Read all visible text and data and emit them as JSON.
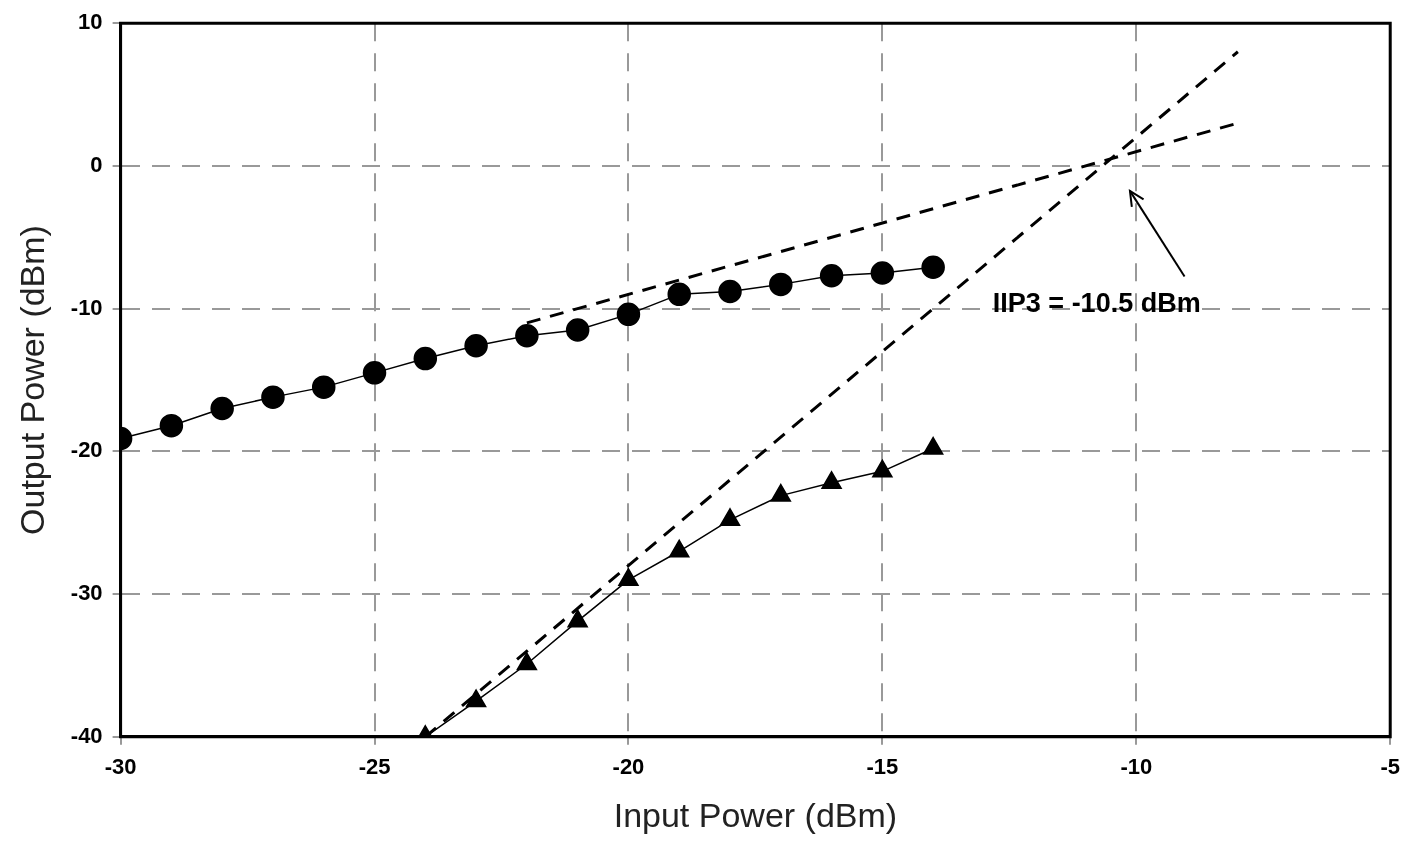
{
  "chart_data": {
    "type": "line",
    "xlabel": "Input Power (dBm)",
    "ylabel": "Output Power (dBm)",
    "xlim": [
      -30,
      -5
    ],
    "xticks": [
      -30,
      -25,
      -20,
      -15,
      -10,
      -5
    ],
    "ylim": [
      -40,
      10
    ],
    "yticks": [
      -40,
      -30,
      -20,
      -10,
      0,
      10
    ],
    "grid": true,
    "legend": false,
    "series": [
      {
        "type": "line",
        "color": "#000000",
        "marker": "circle",
        "line_style": "solid",
        "x": [
          -30,
          -29,
          -28,
          -27,
          -26,
          -25,
          -24,
          -23,
          -22,
          -21,
          -20,
          -19,
          -18,
          -17,
          -16,
          -15,
          -14
        ],
        "values": [
          -19.1,
          -18.2,
          -17.0,
          -16.2,
          -15.5,
          -14.5,
          -13.5,
          -12.6,
          -11.9,
          -11.5,
          -10.4,
          -9.0,
          -8.8,
          -8.3,
          -7.7,
          -7.5,
          -7.1
        ]
      },
      {
        "type": "line",
        "color": "#000000",
        "marker": "triangle",
        "line_style": "solid",
        "x": [
          -24,
          -23,
          -22,
          -21,
          -20,
          -19,
          -18,
          -17,
          -16,
          -15,
          -14
        ],
        "values": [
          -40,
          -37.5,
          -34.9,
          -31.9,
          -29.0,
          -27.0,
          -24.8,
          -23.1,
          -22.2,
          -21.4,
          -19.8
        ]
      },
      {
        "type": "line",
        "color": "#000000",
        "marker": "none",
        "line_style": "dashed",
        "x": [
          -22,
          -8
        ],
        "values": [
          -11,
          3
        ]
      },
      {
        "type": "line",
        "color": "#000000",
        "marker": "none",
        "line_style": "dashed",
        "x": [
          -24,
          -8
        ],
        "values": [
          -40,
          8
        ]
      }
    ],
    "annotations": [
      "IIP3 = -10.5 dBm"
    ]
  }
}
